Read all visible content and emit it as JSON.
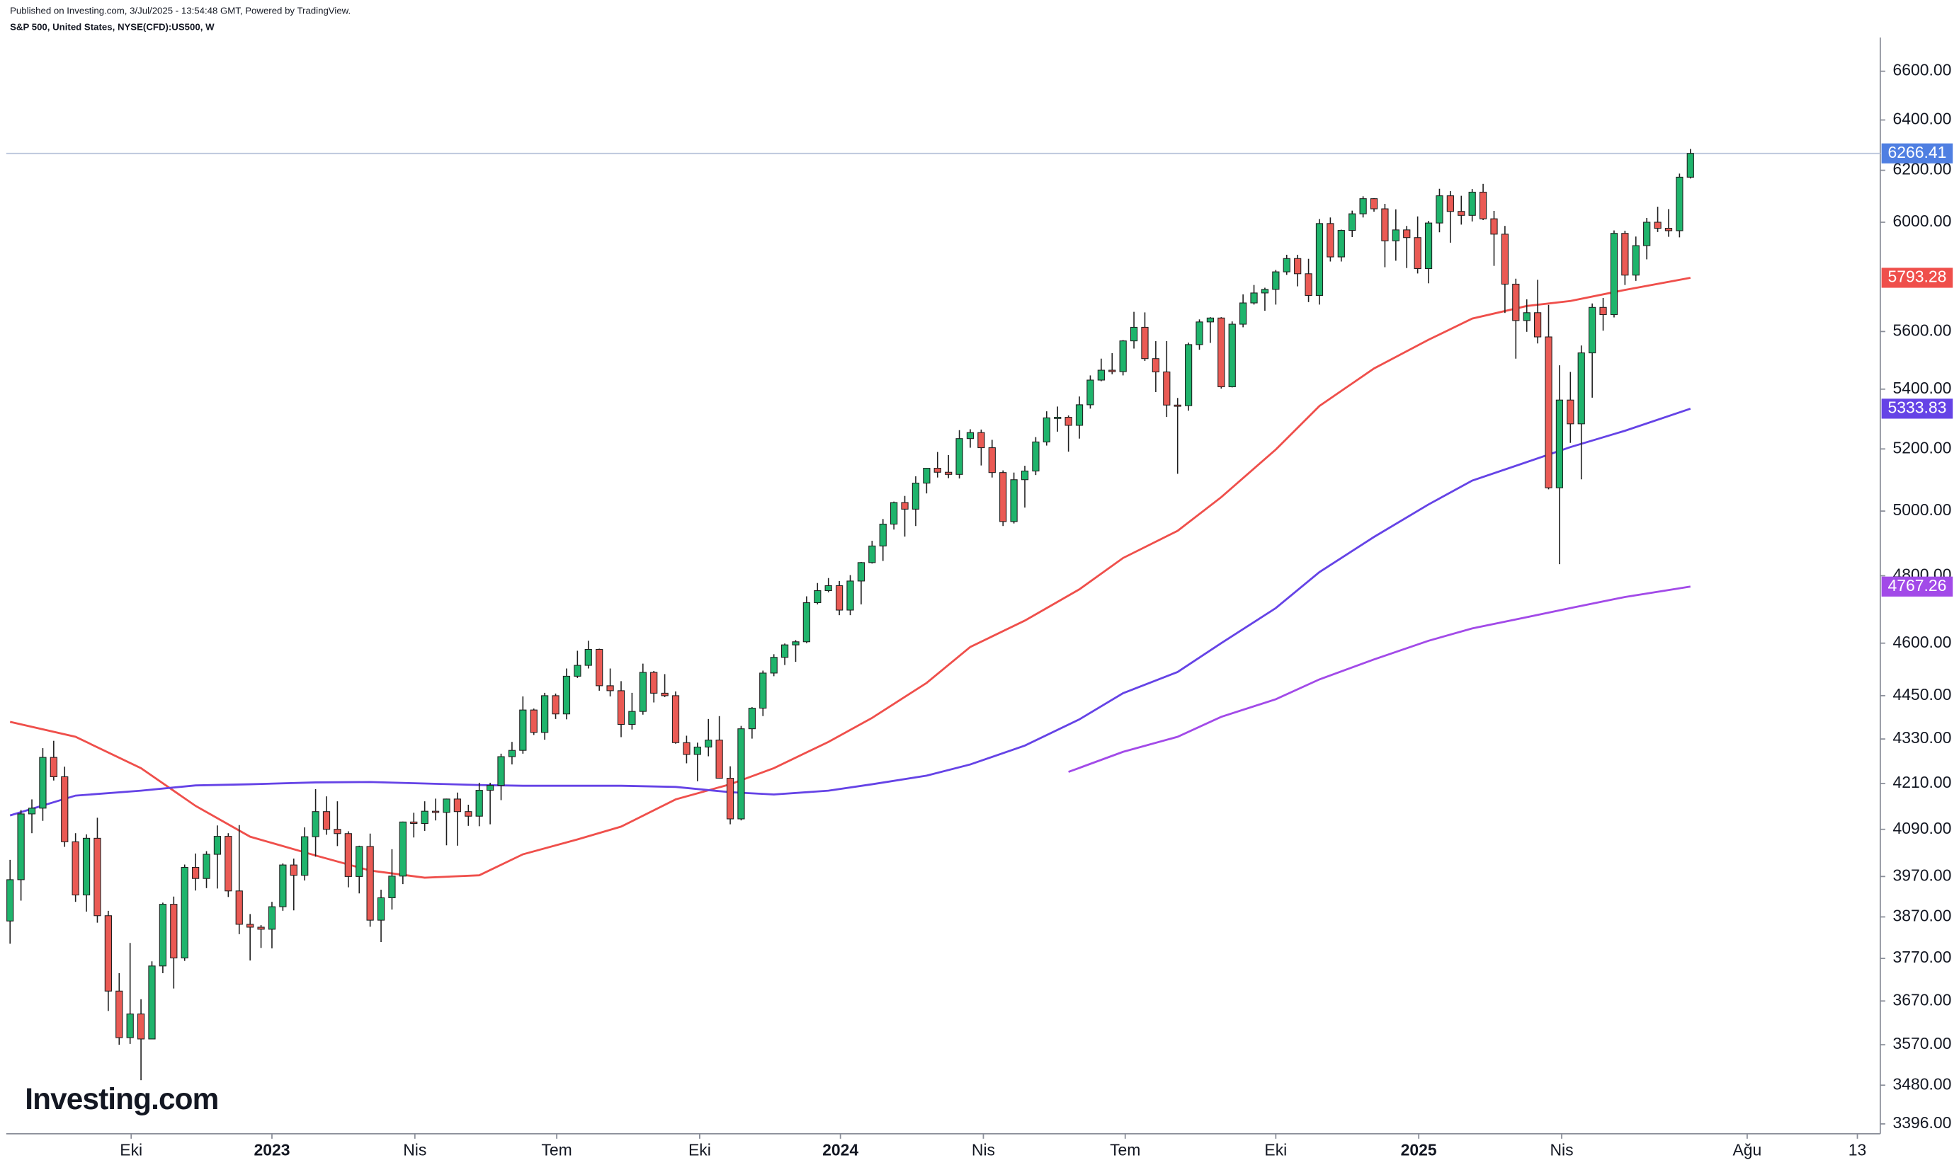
{
  "chart_data": {
    "type": "candlestick",
    "subtitle": "Published on Investing.com, 3/Jul/2025 - 13:54:48 GMT, Powered by TradingView.",
    "title": "S&P 500, United States, NYSE(CFD):US500, W",
    "logo": "Investing.com",
    "log": true,
    "up_color": "#1fb46c",
    "down_color": "#ea5a54",
    "price_line_color": "#b7c3d9",
    "price_tag_color": "#4f7fe2",
    "x": [
      0,
      1,
      2,
      3,
      4,
      5,
      6,
      7,
      8,
      9,
      10,
      11,
      12,
      13,
      14,
      15,
      16,
      17,
      18,
      19,
      20,
      21,
      22,
      23,
      24,
      25,
      26,
      27,
      28,
      29,
      30,
      31,
      32,
      33,
      34,
      35,
      36,
      37,
      38,
      39,
      40,
      41,
      42,
      43,
      44,
      45,
      46,
      47,
      48,
      49,
      50,
      51,
      52,
      53,
      54,
      55,
      56,
      57,
      58,
      59,
      60,
      61,
      62,
      63,
      64,
      65,
      66,
      67,
      68,
      69,
      70,
      71,
      72,
      73,
      74,
      75,
      76,
      77,
      78,
      79,
      80,
      81,
      82,
      83,
      84,
      85,
      86,
      87,
      88,
      89,
      90,
      91,
      92,
      93,
      94,
      95,
      96,
      97,
      98,
      99,
      100,
      101,
      102,
      103,
      104,
      105,
      106,
      107,
      108,
      109,
      110,
      111,
      112,
      113,
      114,
      115,
      116,
      117,
      118,
      119,
      120,
      121,
      122,
      123,
      124,
      125,
      126,
      127,
      128,
      129,
      130,
      131,
      132,
      133,
      134,
      135,
      136,
      137,
      138,
      139,
      140,
      141,
      142,
      143,
      144,
      145,
      146,
      147,
      148,
      149,
      150,
      151,
      152,
      153,
      154
    ],
    "open": [
      3860,
      3962,
      4130,
      4145,
      4280,
      4228,
      4058,
      3924,
      4067,
      3873,
      3693,
      3586,
      3640,
      3583,
      3752,
      3901,
      3771,
      3993,
      3965,
      4026,
      4072,
      3934,
      3852,
      3845,
      3840,
      3895,
      3999,
      3973,
      4071,
      4136,
      4090,
      4079,
      3970,
      4046,
      3862,
      3917,
      3971,
      4109,
      4105,
      4137,
      4134,
      4169,
      4136,
      4124,
      4192,
      4205,
      4282,
      4299,
      4410,
      4348,
      4450,
      4399,
      4505,
      4536,
      4582,
      4478,
      4464,
      4370,
      4406,
      4516,
      4457,
      4450,
      4320,
      4288,
      4308,
      4327,
      4224,
      4117,
      4358,
      4415,
      4514,
      4559,
      4595,
      4604,
      4719,
      4755,
      4770,
      4697,
      4784,
      4840,
      4891,
      4959,
      5027,
      5006,
      5089,
      5137,
      5124,
      5117,
      5234,
      5254,
      5204,
      5123,
      4967,
      5100,
      5128,
      5223,
      5303,
      5305,
      5278,
      5347,
      5431,
      5465,
      5460,
      5567,
      5615,
      5505,
      5459,
      5346,
      5344,
      5554,
      5634,
      5648,
      5408,
      5626,
      5702,
      5738,
      5751,
      5815,
      5864,
      5808,
      5729,
      5995,
      5870,
      5969,
      6032,
      6090,
      6051,
      5930,
      5971,
      5942,
      5827,
      5997,
      6101,
      6041,
      6026,
      6115,
      6013,
      5955,
      5770,
      5639,
      5667,
      5581,
      5074,
      5363,
      5283,
      5525,
      5686,
      5660,
      5958,
      5803,
      5912,
      6000,
      5977,
      5968,
      6173
    ],
    "high": [
      4012,
      4140,
      4168,
      4305,
      4325,
      4255,
      4080,
      4077,
      4120,
      3885,
      3735,
      3807,
      3674,
      3763,
      3905,
      3920,
      4000,
      4028,
      4034,
      4100,
      4080,
      4101,
      3877,
      3850,
      3907,
      4003,
      4015,
      4095,
      4195,
      4176,
      4163,
      4085,
      4048,
      4079,
      3937,
      4039,
      4110,
      4133,
      4163,
      4170,
      4170,
      4186,
      4154,
      4212,
      4212,
      4290,
      4322,
      4448,
      4414,
      4458,
      4456,
      4527,
      4578,
      4607,
      4584,
      4527,
      4491,
      4458,
      4541,
      4520,
      4511,
      4462,
      4339,
      4320,
      4385,
      4393,
      4256,
      4366,
      4418,
      4521,
      4568,
      4599,
      4609,
      4738,
      4778,
      4793,
      4784,
      4802,
      4842,
      4907,
      4975,
      5030,
      5048,
      5111,
      5138,
      5190,
      5180,
      5262,
      5265,
      5264,
      5230,
      5130,
      5123,
      5145,
      5239,
      5325,
      5341,
      5311,
      5375,
      5447,
      5505,
      5524,
      5570,
      5670,
      5668,
      5566,
      5566,
      5370,
      5561,
      5643,
      5651,
      5651,
      5636,
      5733,
      5767,
      5757,
      5822,
      5878,
      5878,
      5863,
      6012,
      6018,
      5972,
      6044,
      6099,
      6092,
      6070,
      6049,
      5986,
      6022,
      6005,
      6128,
      6119,
      6101,
      6127,
      6147,
      6043,
      5986,
      5790,
      5715,
      5786,
      5695,
      5482,
      5459,
      5551,
      5700,
      5720,
      5969,
      5968,
      5946,
      6016,
      6059,
      6050,
      6187,
      6284
    ],
    "low": [
      3805,
      3910,
      4080,
      4112,
      4218,
      4045,
      3907,
      3883,
      3856,
      3647,
      3570,
      3572,
      3491,
      3590,
      3735,
      3699,
      3764,
      3935,
      3941,
      3940,
      3919,
      3828,
      3765,
      3795,
      3794,
      3885,
      3886,
      3960,
      4020,
      4076,
      4047,
      3943,
      3928,
      3846,
      3809,
      3888,
      3951,
      4069,
      4086,
      4113,
      4049,
      4048,
      4099,
      4098,
      4103,
      4166,
      4261,
      4290,
      4341,
      4328,
      4385,
      4384,
      4500,
      4527,
      4464,
      4448,
      4335,
      4356,
      4397,
      4431,
      4446,
      4317,
      4264,
      4216,
      4283,
      4223,
      4103,
      4113,
      4331,
      4393,
      4505,
      4537,
      4546,
      4600,
      4714,
      4750,
      4682,
      4682,
      4714,
      4837,
      4845,
      4942,
      4920,
      4953,
      5056,
      5107,
      5105,
      5104,
      5204,
      5146,
      5107,
      4953,
      4961,
      5011,
      5115,
      5211,
      5257,
      5191,
      5234,
      5334,
      5427,
      5451,
      5447,
      5540,
      5497,
      5390,
      5306,
      5119,
      5327,
      5536,
      5560,
      5402,
      5406,
      5615,
      5696,
      5674,
      5696,
      5804,
      5762,
      5705,
      5696,
      5853,
      5853,
      5944,
      6018,
      6040,
      5832,
      5856,
      5829,
      5809,
      5773,
      5962,
      5923,
      5991,
      6003,
      6008,
      5837,
      5666,
      5505,
      5599,
      5558,
      5069,
      4835,
      5220,
      5101,
      5371,
      5603,
      5650,
      5767,
      5782,
      5861,
      5963,
      5945,
      5943,
      6168
    ],
    "close": [
      3962,
      4130,
      4145,
      4280,
      4228,
      4058,
      3924,
      4067,
      3873,
      3693,
      3586,
      3640,
      3583,
      3752,
      3901,
      3771,
      3993,
      3965,
      4026,
      4072,
      3934,
      3852,
      3845,
      3840,
      3895,
      3999,
      3973,
      4071,
      4136,
      4090,
      4079,
      3970,
      4046,
      3862,
      3917,
      3971,
      4109,
      4105,
      4137,
      4134,
      4169,
      4136,
      4124,
      4192,
      4205,
      4282,
      4299,
      4410,
      4348,
      4450,
      4399,
      4505,
      4536,
      4582,
      4478,
      4464,
      4370,
      4406,
      4516,
      4457,
      4450,
      4320,
      4288,
      4308,
      4327,
      4224,
      4117,
      4358,
      4415,
      4514,
      4559,
      4595,
      4604,
      4719,
      4755,
      4770,
      4697,
      4784,
      4840,
      4891,
      4959,
      5027,
      5006,
      5089,
      5137,
      5124,
      5117,
      5234,
      5254,
      5204,
      5123,
      4967,
      5100,
      5128,
      5223,
      5303,
      5305,
      5278,
      5347,
      5431,
      5465,
      5460,
      5567,
      5615,
      5505,
      5459,
      5346,
      5344,
      5554,
      5634,
      5648,
      5408,
      5626,
      5702,
      5738,
      5751,
      5815,
      5864,
      5808,
      5729,
      5995,
      5870,
      5969,
      6032,
      6090,
      6051,
      5930,
      5971,
      5942,
      5827,
      5997,
      6101,
      6041,
      6026,
      6115,
      6013,
      5955,
      5770,
      5639,
      5667,
      5581,
      5074,
      5363,
      5283,
      5525,
      5686,
      5660,
      5958,
      5803,
      5912,
      6000,
      5977,
      5968,
      6173,
      6266.41
    ],
    "lines": [
      {
        "color": "#ef4f4b",
        "x": [
          0,
          6,
          12,
          17,
          22,
          28,
          33,
          38,
          43,
          47,
          52,
          56,
          61,
          66,
          70,
          75,
          79,
          84,
          88,
          93,
          98,
          102,
          107,
          111,
          116,
          120,
          125,
          130,
          134,
          139,
          143,
          148,
          154
        ],
        "values": [
          4377,
          4336,
          4251,
          4151,
          4071,
          4023,
          3985,
          3967,
          3973,
          4026,
          4064,
          4097,
          4168,
          4208,
          4251,
          4322,
          4388,
          4486,
          4589,
          4666,
          4759,
          4854,
          4938,
          5044,
          5198,
          5343,
          5471,
          5571,
          5646,
          5691,
          5709,
          5749,
          5793.28
        ]
      },
      {
        "color": "#6543e6",
        "x": [
          0,
          6,
          12,
          17,
          22,
          28,
          33,
          38,
          43,
          47,
          52,
          56,
          61,
          66,
          70,
          75,
          79,
          84,
          88,
          93,
          98,
          102,
          107,
          111,
          116,
          120,
          125,
          130,
          134,
          139,
          143,
          148,
          154
        ],
        "values": [
          4126,
          4178,
          4191,
          4205,
          4208,
          4213,
          4214,
          4210,
          4206,
          4204,
          4204,
          4204,
          4201,
          4187,
          4181,
          4191,
          4208,
          4231,
          4261,
          4312,
          4384,
          4457,
          4517,
          4600,
          4703,
          4811,
          4919,
          5021,
          5097,
          5157,
          5206,
          5260,
          5333.83
        ]
      },
      {
        "color": "#a24ae8",
        "x": [
          97,
          102,
          107,
          111,
          116,
          120,
          125,
          130,
          134,
          139,
          143,
          148,
          154
        ],
        "values": [
          4241,
          4295,
          4336,
          4391,
          4440,
          4496,
          4553,
          4607,
          4643,
          4676,
          4703,
          4736,
          4767.26
        ]
      }
    ],
    "xlim": [
      -0.35,
      171.4
    ],
    "xticks": [
      {
        "value": 11.1,
        "label": "Eki"
      },
      {
        "value": 24,
        "label": "2023"
      },
      {
        "value": 37.1,
        "label": "Nis"
      },
      {
        "value": 50.1,
        "label": "Tem"
      },
      {
        "value": 63.2,
        "label": "Eki"
      },
      {
        "value": 76.1,
        "label": "2024"
      },
      {
        "value": 89.2,
        "label": "Nis"
      },
      {
        "value": 102.2,
        "label": "Tem"
      },
      {
        "value": 116,
        "label": "Eki"
      },
      {
        "value": 129.1,
        "label": "2025"
      },
      {
        "value": 142.2,
        "label": "Nis"
      },
      {
        "value": 159.2,
        "label": "Ağu"
      },
      {
        "value": 169.3,
        "label": "13"
      }
    ],
    "ylim": [
      3375,
      6742
    ],
    "yticks": [
      {
        "value": 6600,
        "label": "6600.00"
      },
      {
        "value": 6400,
        "label": "6400.00"
      },
      {
        "value": 6200,
        "label": "6200.00"
      },
      {
        "value": 6000,
        "label": "6000.00"
      },
      {
        "value": 5600,
        "label": "5600.00"
      },
      {
        "value": 5400,
        "label": "5400.00"
      },
      {
        "value": 5200,
        "label": "5200.00"
      },
      {
        "value": 5000,
        "label": "5000.00"
      },
      {
        "value": 4800,
        "label": "4800.00"
      },
      {
        "value": 4600,
        "label": "4600.00"
      },
      {
        "value": 4450,
        "label": "4450.00"
      },
      {
        "value": 4330,
        "label": "4330.00"
      },
      {
        "value": 4210,
        "label": "4210.00"
      },
      {
        "value": 4090,
        "label": "4090.00"
      },
      {
        "value": 3970,
        "label": "3970.00"
      },
      {
        "value": 3870,
        "label": "3870.00"
      },
      {
        "value": 3770,
        "label": "3770.00"
      },
      {
        "value": 3670,
        "label": "3670.00"
      },
      {
        "value": 3570,
        "label": "3570.00"
      },
      {
        "value": 3480,
        "label": "3480.00"
      },
      {
        "value": 3396,
        "label": "3396.00"
      }
    ]
  }
}
